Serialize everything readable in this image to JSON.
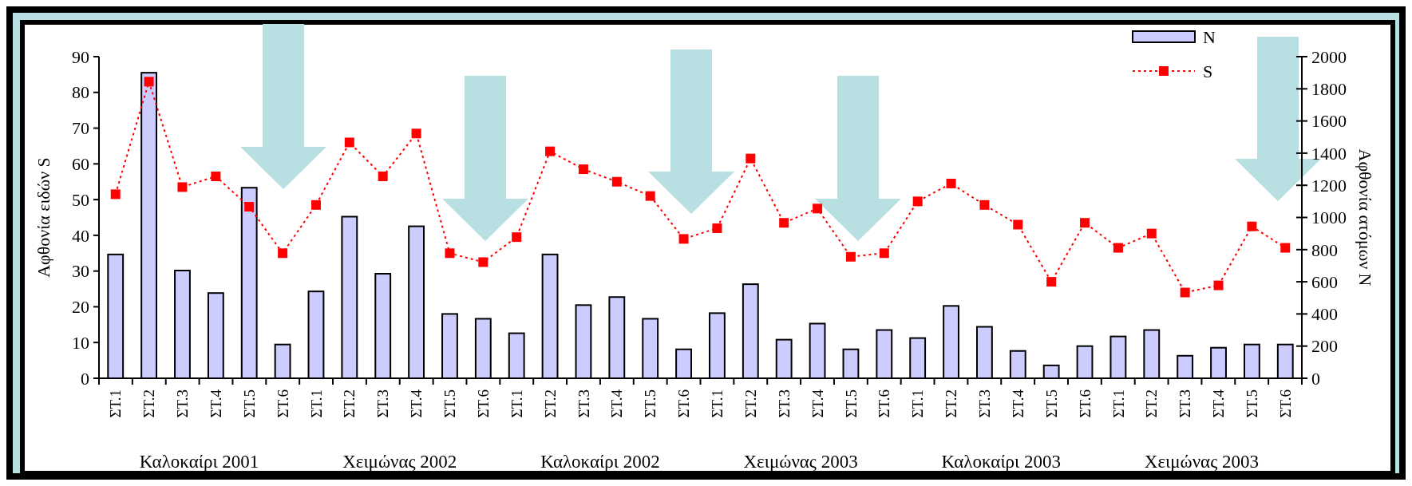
{
  "chart_data": {
    "type": "bar",
    "ylabel": "Αφθονία ειδών S",
    "y2label": "Αφθονία ατόμων N",
    "categories": [
      "ΣΤ.1",
      "ΣΤ.2",
      "ΣΤ.3",
      "ΣΤ.4",
      "ΣΤ.5",
      "ΣΤ.6",
      "ΣΤ.1",
      "ΣΤ.2",
      "ΣΤ.3",
      "ΣΤ.4",
      "ΣΤ.5",
      "ΣΤ.6",
      "ΣΤ.1",
      "ΣΤ.2",
      "ΣΤ.3",
      "ΣΤ.4",
      "ΣΤ.5",
      "ΣΤ.6",
      "ΣΤ.1",
      "ΣΤ.2",
      "ΣΤ.3",
      "ΣΤ.4",
      "ΣΤ.5",
      "ΣΤ.6",
      "ΣΤ.1",
      "ΣΤ.2",
      "ΣΤ.3",
      "ΣΤ.4",
      "ΣΤ.5",
      "ΣΤ.6",
      "ΣΤ.1",
      "ΣΤ.2",
      "ΣΤ.3",
      "ΣΤ.4",
      "ΣΤ.5",
      "ΣΤ.6"
    ],
    "annotations": [
      "Καλοκαίρι 2001",
      "Χειμώνας 2002",
      "Καλοκαίρι 2002",
      "Χειμώνας 2003",
      "Καλοκαίρι 2003",
      "Χειμώνας 2003"
    ],
    "series": [
      {
        "name": "N",
        "axis": "y2",
        "color": "#ccccff",
        "values": [
          770,
          1900,
          670,
          530,
          1185,
          210,
          540,
          1005,
          650,
          945,
          400,
          370,
          280,
          770,
          455,
          505,
          370,
          180,
          405,
          585,
          240,
          340,
          180,
          300,
          250,
          450,
          320,
          170,
          80,
          200,
          260,
          300,
          140,
          190,
          210,
          210
        ]
      },
      {
        "name": "S",
        "type": "line",
        "axis": "y",
        "color": "#ff0000",
        "marker": "square",
        "line_style": "dotted",
        "values": [
          51.5,
          83,
          53.5,
          56.5,
          48,
          35,
          48.5,
          66,
          56.5,
          68.5,
          35,
          32.5,
          39.5,
          63.5,
          58.5,
          55,
          51,
          39,
          42,
          61.5,
          43.5,
          47.5,
          34,
          35,
          49.5,
          54.5,
          48.5,
          43,
          27,
          43.5,
          36.5,
          40.5,
          24,
          26,
          42.5,
          36.5
        ]
      }
    ],
    "ylim": [
      0,
      90
    ],
    "yticks": [
      0,
      10,
      20,
      30,
      40,
      50,
      60,
      70,
      80,
      90
    ],
    "y2lim": [
      0,
      2000
    ],
    "y2ticks": [
      0,
      200,
      400,
      600,
      800,
      1000,
      1200,
      1400,
      1600,
      1800,
      2000
    ],
    "legend": "top right",
    "grid": false
  }
}
